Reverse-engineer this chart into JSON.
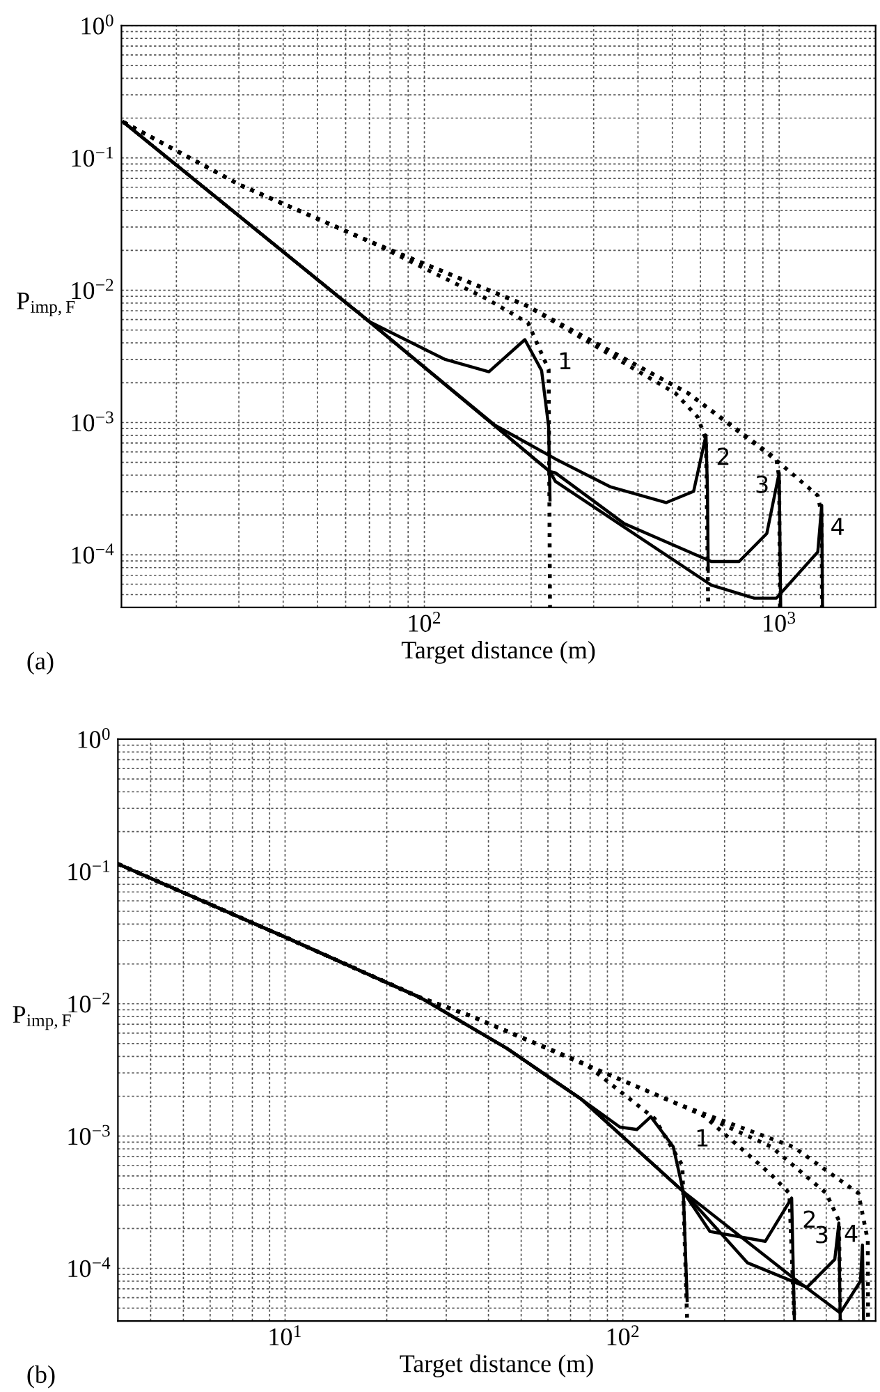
{
  "chart_data": [
    {
      "type": "line",
      "xlabel": "Target distance (m)",
      "ylabel": "P$_{imp,F}$",
      "log": "xy",
      "grid": true,
      "legend": false,
      "xlim": [
        14,
        1870
      ],
      "ylim": [
        4e-05,
        1
      ],
      "xticks": [
        {
          "value": 100,
          "label": "10$^{2}$"
        },
        {
          "value": 1000,
          "label": "10$^{3}$"
        }
      ],
      "yticks": [
        {
          "value": 0.0001,
          "label": "10$^{−4}$"
        },
        {
          "value": 0.001,
          "label": "10$^{−3}$"
        },
        {
          "value": 0.01,
          "label": "10$^{−2}$"
        },
        {
          "value": 0.1,
          "label": "10$^{−1}$"
        },
        {
          "value": 1,
          "label": "10$^{0}$"
        }
      ],
      "series": [
        {
          "name": "1",
          "color": "#000000",
          "line_style": "solid",
          "x": [
            14.2,
            70,
            114,
            152,
            192,
            214,
            224,
            226
          ],
          "values": [
            0.186,
            0.00578,
            0.00301,
            0.00242,
            0.00423,
            0.00247,
            0.000933,
            0.00026
          ]
        },
        {
          "name": "2",
          "color": "#000000",
          "line_style": "solid",
          "x": [
            14.2,
            70,
            158,
            234,
            335,
            480,
            574,
            622,
            628,
            631
          ],
          "values": [
            0.186,
            0.00578,
            0.000955,
            0.000531,
            0.000326,
            0.000248,
            0.000302,
            0.000802,
            0.0003,
            7.5e-05
          ]
        },
        {
          "name": "3",
          "color": "#000000",
          "line_style": "solid",
          "x": [
            14.2,
            70,
            226,
            234,
            366,
            644,
            771,
            923,
            1000,
            1010
          ],
          "values": [
            0.186,
            0.00578,
            0.000425,
            0.000417,
            0.000172,
            8.9e-05,
            8.9e-05,
            0.000145,
            0.000417,
            4e-05
          ]
        },
        {
          "name": "4",
          "color": "#000000",
          "line_style": "solid",
          "x": [
            14.2,
            70,
            226,
            234,
            644,
            851,
            982,
            1285,
            1318,
            1325
          ],
          "values": [
            0.186,
            0.00578,
            0.000425,
            0.000359,
            5.9e-05,
            4.7e-05,
            4.7e-05,
            0.000105,
            0.000237,
            4e-05
          ]
        },
        {
          "color": "#000000",
          "line_style": "dotted",
          "x": [
            14.2,
            30.3,
            70,
            150,
            196,
            224,
            226
          ],
          "values": [
            0.186,
            0.0622,
            0.0234,
            0.00859,
            0.00566,
            0.00251,
            4e-05
          ]
        },
        {
          "color": "#000000",
          "line_style": "dotted",
          "x": [
            14.2,
            30.3,
            70,
            195,
            511,
            589,
            622,
            631
          ],
          "values": [
            0.186,
            0.0622,
            0.0234,
            0.0076,
            0.00166,
            0.0011,
            0.000745,
            4e-05
          ]
        },
        {
          "color": "#000000",
          "line_style": "dotted",
          "x": [
            14.2,
            30.3,
            70,
            195,
            553,
            771,
            982,
            1000,
            1005
          ],
          "values": [
            0.186,
            0.0622,
            0.0234,
            0.0076,
            0.00167,
            0.000863,
            0.000531,
            0.000385,
            4e-05
          ]
        },
        {
          "color": "#000000",
          "line_style": "dotted",
          "x": [
            14.2,
            30.3,
            70,
            195,
            553,
            984,
            1285,
            1318,
            1320
          ],
          "values": [
            0.186,
            0.0622,
            0.0234,
            0.0076,
            0.00167,
            0.000516,
            0.00028,
            0.0002,
            4e-05
          ]
        }
      ],
      "annotations": [
        "(a)"
      ]
    },
    {
      "type": "line",
      "xlabel": "Target distance (m)",
      "ylabel": "P$_{imp,F}$",
      "log": "xy",
      "grid": true,
      "legend": false,
      "xlim": [
        3.2,
        560
      ],
      "ylim": [
        4e-05,
        1
      ],
      "xticks": [
        {
          "value": 10,
          "label": "10$^{1}$"
        },
        {
          "value": 100,
          "label": "10$^{2}$"
        }
      ],
      "yticks": [
        {
          "value": 0.0001,
          "label": "10$^{−4}$"
        },
        {
          "value": 0.001,
          "label": "10$^{−3}$"
        },
        {
          "value": 0.01,
          "label": "10$^{−2}$"
        },
        {
          "value": 0.1,
          "label": "10$^{−1}$"
        },
        {
          "value": 1,
          "label": "10$^{0}$"
        }
      ],
      "series": [
        {
          "name": "1",
          "color": "#000000",
          "line_style": "solid",
          "x": [
            3.2,
            10.2,
            25.2,
            45.3,
            75.3,
            98,
            110,
            121,
            141,
            151,
            155
          ],
          "values": [
            0.114,
            0.0312,
            0.0111,
            0.00461,
            0.0019,
            0.00117,
            0.00112,
            0.0014,
            0.00083,
            0.00038,
            5.7e-05
          ]
        },
        {
          "name": "2",
          "color": "#000000",
          "line_style": "solid",
          "x": [
            3.2,
            10.2,
            25.2,
            45.3,
            75.3,
            151,
            181,
            264,
            316,
            322
          ],
          "values": [
            0.114,
            0.0312,
            0.0111,
            0.00461,
            0.0019,
            0.00038,
            0.00019,
            0.00016,
            0.00034,
            4e-05
          ]
        },
        {
          "name": "3",
          "color": "#000000",
          "line_style": "solid",
          "x": [
            3.2,
            10.2,
            25.2,
            45.3,
            75.3,
            151,
            234,
            351,
            424,
            436,
            440
          ],
          "values": [
            0.114,
            0.0312,
            0.0111,
            0.00461,
            0.0019,
            0.00038,
            0.00011,
            7.2e-05,
            0.000117,
            0.00022,
            4e-05
          ]
        },
        {
          "name": "4",
          "color": "#000000",
          "line_style": "solid",
          "x": [
            3.2,
            10.2,
            25.2,
            45.3,
            75.3,
            151,
            319,
            440,
            505,
            512,
            516
          ],
          "values": [
            0.114,
            0.0312,
            0.0111,
            0.00461,
            0.0019,
            0.00038,
            8.5e-05,
            4.6e-05,
            8e-05,
            0.00015,
            4e-05
          ]
        },
        {
          "color": "#000000",
          "line_style": "dotted",
          "x": [
            3.2,
            10.2,
            25.2,
            35.4,
            77.5,
            124,
            150,
            155
          ],
          "values": [
            0.114,
            0.0312,
            0.0111,
            0.0081,
            0.0035,
            0.00136,
            0.0006,
            4e-05
          ]
        },
        {
          "color": "#000000",
          "line_style": "dotted",
          "x": [
            3.2,
            10.2,
            25.2,
            35.4,
            146,
            171,
            275,
            311,
            322
          ],
          "values": [
            0.114,
            0.0312,
            0.0111,
            0.0081,
            0.00174,
            0.00147,
            0.00051,
            0.00037,
            4e-05
          ]
        },
        {
          "color": "#000000",
          "line_style": "dotted",
          "x": [
            3.2,
            10.2,
            25.2,
            35.4,
            146,
            275,
            400,
            436,
            441
          ],
          "values": [
            0.114,
            0.0312,
            0.0111,
            0.0081,
            0.00174,
            0.00083,
            0.00037,
            0.00023,
            4e-05
          ]
        },
        {
          "color": "#000000",
          "line_style": "dotted",
          "x": [
            3.2,
            10.2,
            25.2,
            35.4,
            146,
            319,
            498,
            531,
            532
          ],
          "values": [
            0.114,
            0.0312,
            0.0111,
            0.0081,
            0.00174,
            0.00083,
            0.00037,
            0.000162,
            4e-05
          ]
        }
      ],
      "annotations": [
        "(b)"
      ]
    }
  ]
}
